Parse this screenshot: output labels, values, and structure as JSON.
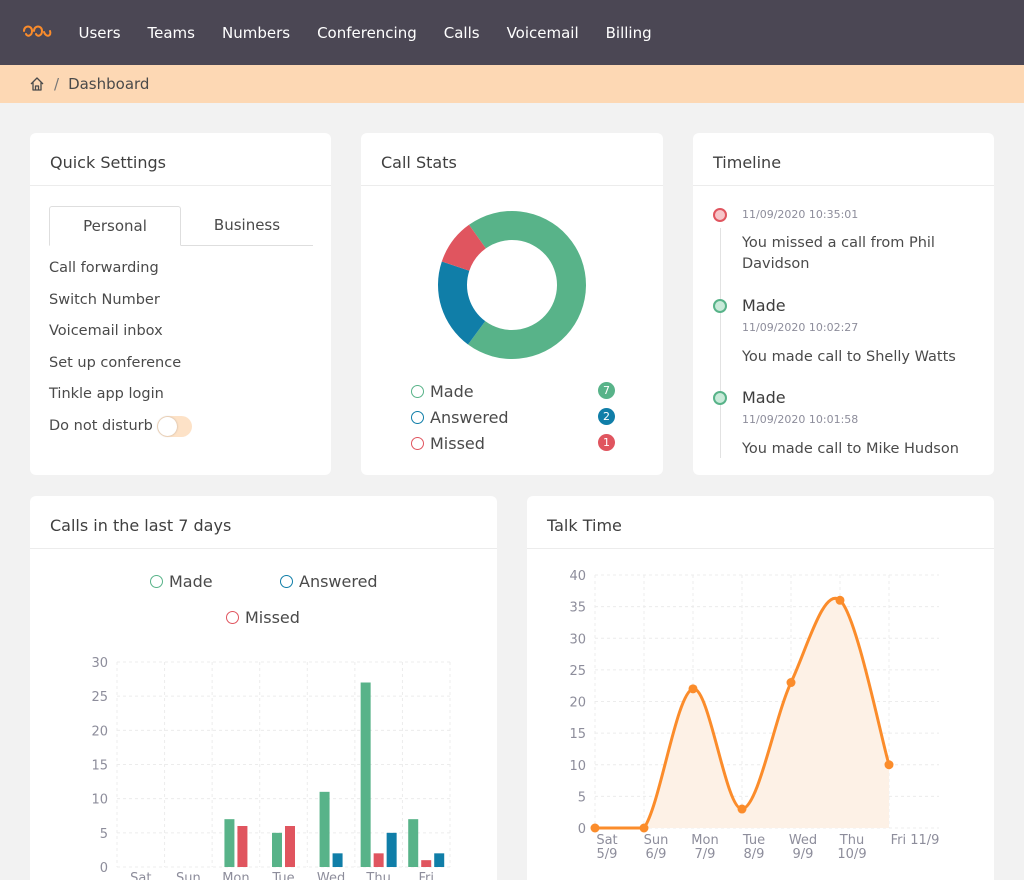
{
  "nav": {
    "logo": "tinkle-logo",
    "items": [
      "Users",
      "Teams",
      "Numbers",
      "Conferencing",
      "Calls",
      "Voicemail",
      "Billing"
    ]
  },
  "breadcrumb": {
    "current": "Dashboard",
    "separator": "/"
  },
  "quick_settings": {
    "title": "Quick Settings",
    "tabs": [
      {
        "label": "Personal",
        "active": true
      },
      {
        "label": "Business",
        "active": false
      }
    ],
    "items": [
      "Call forwarding",
      "Switch Number",
      "Voicemail inbox",
      "Set up conference",
      "Tinkle app login"
    ],
    "dnd_label": "Do not disturb",
    "dnd_on": false
  },
  "call_stats": {
    "title": "Call Stats",
    "legend": [
      {
        "label": "Made",
        "count": "7",
        "color": "#58b389"
      },
      {
        "label": "Answered",
        "count": "2",
        "color": "#107ea8"
      },
      {
        "label": "Missed",
        "count": "1",
        "color": "#e0555f"
      }
    ]
  },
  "timeline": {
    "title": "Timeline",
    "entries": [
      {
        "time": "11/09/2020 10:35:01",
        "heading": "",
        "text": "You missed a call from Phil Davidson",
        "color": "#e0555f"
      },
      {
        "time": "11/09/2020 10:02:27",
        "heading": "Made",
        "text": "You made call to Shelly Watts",
        "color": "#58b389"
      },
      {
        "time": "11/09/2020 10:01:58",
        "heading": "Made",
        "text": "You made call to Mike Hudson",
        "color": "#58b389"
      }
    ]
  },
  "calls_chart": {
    "title": "Calls in the last 7 days",
    "legend": [
      {
        "label": "Made",
        "color": "#58b389"
      },
      {
        "label": "Answered",
        "color": "#107ea8"
      },
      {
        "label": "Missed",
        "color": "#e0555f"
      }
    ]
  },
  "talk_chart": {
    "title": "Talk Time"
  },
  "chart_data": [
    {
      "type": "pie",
      "title": "Call Stats",
      "categories": [
        "Made",
        "Answered",
        "Missed"
      ],
      "values": [
        7,
        2,
        1
      ],
      "colors": [
        "#58b389",
        "#107ea8",
        "#e0555f"
      ]
    },
    {
      "type": "bar",
      "title": "Calls in the last 7 days",
      "categories": [
        "Sat",
        "Sun",
        "Mon",
        "Tue",
        "Wed",
        "Thu",
        "Fri"
      ],
      "series": [
        {
          "name": "Made",
          "color": "#58b389",
          "values": [
            0,
            0,
            7,
            5,
            11,
            27,
            7
          ]
        },
        {
          "name": "Missed",
          "color": "#e0555f",
          "values": [
            0,
            0,
            6,
            6,
            0,
            2,
            1
          ]
        },
        {
          "name": "Answered",
          "color": "#107ea8",
          "values": [
            0,
            0,
            0,
            0,
            2,
            5,
            2
          ]
        }
      ],
      "yticks": [
        0,
        5,
        10,
        15,
        20,
        25,
        30
      ],
      "ylim": [
        0,
        30
      ],
      "grid": true
    },
    {
      "type": "area",
      "title": "Talk Time",
      "categories": [
        [
          "Sat",
          "5/9"
        ],
        [
          "Sun",
          "6/9"
        ],
        [
          "Mon",
          "7/9"
        ],
        [
          "Tue",
          "8/9"
        ],
        [
          "Wed",
          "9/9"
        ],
        [
          "Thu",
          "10/9"
        ],
        [
          "Fri 11/9"
        ]
      ],
      "values": [
        0,
        0,
        22,
        3,
        23,
        36,
        10
      ],
      "color": "#fb8c2b",
      "fill": "#fdf1e6",
      "yticks": [
        0,
        5,
        10,
        15,
        20,
        25,
        30,
        35,
        40
      ],
      "ylim": [
        0,
        40
      ],
      "grid": true
    }
  ]
}
